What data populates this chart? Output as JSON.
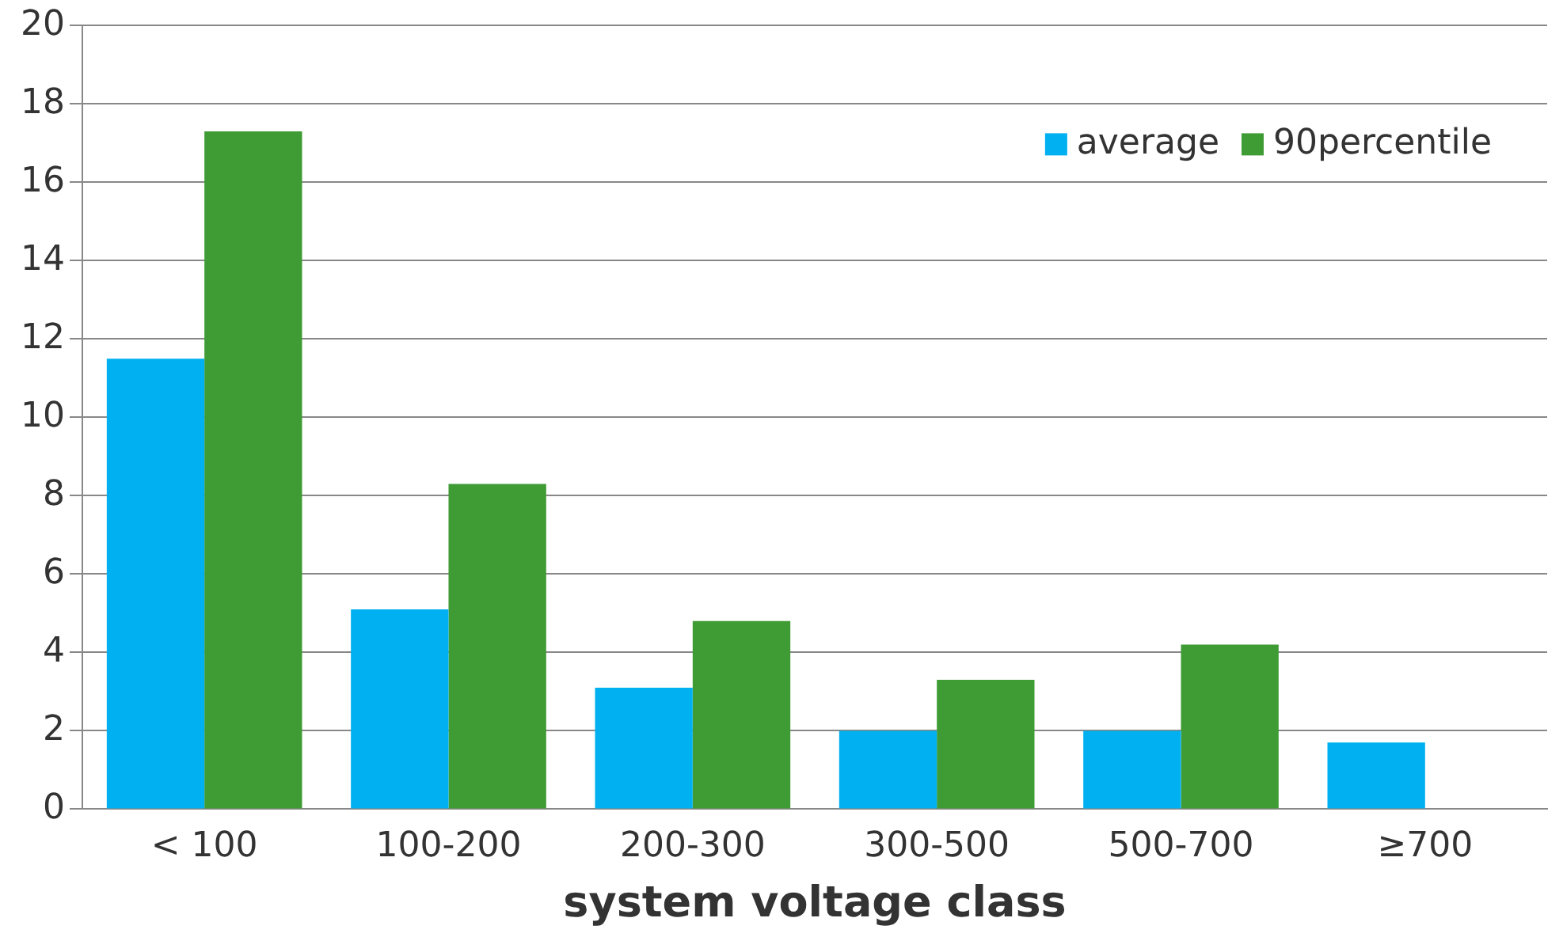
{
  "chart_data": {
    "type": "bar",
    "xlabel": "system voltage class",
    "categories": [
      "< 100",
      "100-200",
      "200-300",
      "300-500",
      "500-700",
      "≥700"
    ],
    "series": [
      {
        "name": "average",
        "color": "#00b0f0",
        "values": [
          11.5,
          5.1,
          3.1,
          2.0,
          2.0,
          1.7
        ]
      },
      {
        "name": "90percentile",
        "color": "#3f9c35",
        "values": [
          17.3,
          8.3,
          4.8,
          3.3,
          4.2,
          null
        ]
      }
    ],
    "ylim": [
      0,
      20
    ],
    "yticks": [
      0,
      2,
      4,
      6,
      8,
      10,
      12,
      14,
      16,
      18,
      20
    ],
    "grid": "y",
    "legend": "top right"
  }
}
